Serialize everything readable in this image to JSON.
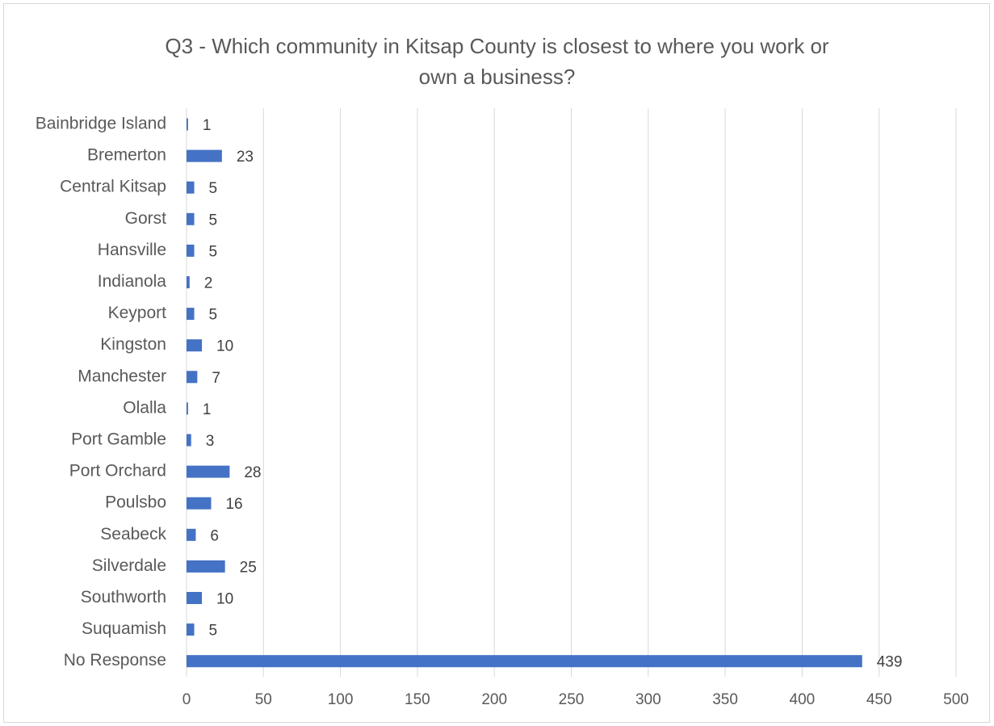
{
  "chart_data": {
    "type": "bar",
    "orientation": "horizontal",
    "title": "Q3 - Which community in Kitsap County is closest to where you work or own a business?",
    "title_lines": [
      "Q3 - Which community in Kitsap County is closest to where you work or",
      "own a business?"
    ],
    "categories": [
      "Bainbridge Island",
      "Bremerton",
      "Central Kitsap",
      "Gorst",
      "Hansville",
      "Indianola",
      "Keyport",
      "Kingston",
      "Manchester",
      "Olalla",
      "Port Gamble",
      "Port Orchard",
      "Poulsbo",
      "Seabeck",
      "Silverdale",
      "Southworth",
      "Suquamish",
      "No Response"
    ],
    "values": [
      1,
      23,
      5,
      5,
      5,
      2,
      5,
      10,
      7,
      1,
      3,
      28,
      16,
      6,
      25,
      10,
      5,
      439
    ],
    "xlim": [
      0,
      500
    ],
    "xticks": [
      0,
      50,
      100,
      150,
      200,
      250,
      300,
      350,
      400,
      450,
      500
    ],
    "grid": true,
    "legend": "none",
    "data_labels": true,
    "bar_color": "#4472c4",
    "grid_color": "#d9d9d9",
    "text_color": "#595959"
  }
}
